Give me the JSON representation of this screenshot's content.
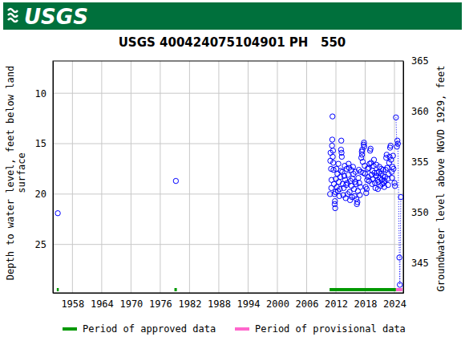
{
  "header": {
    "logo": "USGS"
  },
  "chart_data": {
    "type": "scatter",
    "title": "USGS 400424075104901 PH   550",
    "ylabel": [
      "Depth to water level, feet below land",
      "surface"
    ],
    "y2label": "Groundwater level above NGVD 1929, feet",
    "xlim": [
      1954,
      2025.8
    ],
    "xticks": [
      1958,
      1964,
      1970,
      1976,
      1982,
      1988,
      1994,
      2000,
      2006,
      2012,
      2018,
      2024
    ],
    "ylim": [
      6.8,
      29.8
    ],
    "yticks": [
      10,
      15,
      20,
      25
    ],
    "y2lim": [
      342,
      365
    ],
    "y2ticks": [
      345,
      350,
      355,
      360,
      365
    ],
    "grid": true,
    "series": [
      {
        "color": "#0000ff",
        "marker": "open-circle",
        "line_style": "none",
        "x": [
          1955.0,
          1979.2,
          2010.8,
          2010.85,
          2010.9,
          2011.0,
          2011.05,
          2011.1,
          2011.2,
          2011.25,
          2011.3,
          2011.35,
          2011.4,
          2011.45,
          2011.5,
          2011.6,
          2011.7,
          2011.75,
          2011.8,
          2011.85,
          2011.9,
          2012.0,
          2012.1,
          2012.2,
          2012.3,
          2012.4,
          2012.5,
          2012.6,
          2012.7,
          2012.8,
          2012.9,
          2013.0,
          2013.05,
          2013.1,
          2013.15,
          2013.2,
          2013.3,
          2013.4,
          2013.5,
          2013.6,
          2013.7,
          2013.8,
          2013.9,
          2014.0,
          2014.1,
          2014.2,
          2014.3,
          2014.4,
          2014.5,
          2014.6,
          2014.7,
          2014.8,
          2014.9,
          2015.0,
          2015.1,
          2015.2,
          2015.3,
          2015.4,
          2015.5,
          2015.6,
          2015.7,
          2015.8,
          2015.9,
          2016.0,
          2016.1,
          2016.2,
          2016.3,
          2016.4,
          2016.5,
          2016.6,
          2016.7,
          2016.8,
          2016.9,
          2017.0,
          2017.1,
          2017.2,
          2017.3,
          2017.35,
          2017.4,
          2017.5,
          2017.6,
          2017.7,
          2017.75,
          2017.8,
          2017.9,
          2018.0,
          2018.1,
          2018.2,
          2018.3,
          2018.4,
          2018.5,
          2018.6,
          2018.7,
          2018.8,
          2018.9,
          2019.0,
          2019.1,
          2019.2,
          2019.3,
          2019.4,
          2019.5,
          2019.6,
          2019.7,
          2019.8,
          2019.9,
          2020.0,
          2020.1,
          2020.2,
          2020.3,
          2020.4,
          2020.5,
          2020.6,
          2020.7,
          2020.8,
          2020.9,
          2021.0,
          2021.1,
          2021.2,
          2021.3,
          2021.4,
          2021.5,
          2021.6,
          2021.7,
          2021.8,
          2021.9,
          2022.0,
          2022.1,
          2022.2,
          2022.3,
          2022.4,
          2022.5,
          2022.6,
          2022.7,
          2022.8,
          2022.9,
          2023.0,
          2023.1,
          2023.2,
          2023.3,
          2023.4,
          2023.5,
          2023.6,
          2023.7,
          2023.8,
          2024.0,
          2024.1
        ],
        "values": [
          21.9,
          18.7,
          20.0,
          16.7,
          15.9,
          17.5,
          19.4,
          18.6,
          15.2,
          14.6,
          12.3,
          16.3,
          15.7,
          16.9,
          17.6,
          19.0,
          20.0,
          21.0,
          20.7,
          21.4,
          19.8,
          18.5,
          17.5,
          19.3,
          18.0,
          19.7,
          17.0,
          18.8,
          20.2,
          19.5,
          18.3,
          17.7,
          15.6,
          14.7,
          15.9,
          16.3,
          17.8,
          19.0,
          20.1,
          19.4,
          18.2,
          17.2,
          18.6,
          20.4,
          19.1,
          17.5,
          18.9,
          20.0,
          18.1,
          17.0,
          17.4,
          19.8,
          20.6,
          18.7,
          17.6,
          19.2,
          20.3,
          18.5,
          17.3,
          18.0,
          19.5,
          20.2,
          18.8,
          17.8,
          19.0,
          20.5,
          21.0,
          20.8,
          19.7,
          18.4,
          17.6,
          18.9,
          20.1,
          19.3,
          17.8,
          16.4,
          15.8,
          16.1,
          15.6,
          16.8,
          17.9,
          15.1,
          14.9,
          15.3,
          17.2,
          18.0,
          19.3,
          19.9,
          19.5,
          18.6,
          17.5,
          18.3,
          17.4,
          18.7,
          17.0,
          15.7,
          15.5,
          16.9,
          18.1,
          19.0,
          17.7,
          18.5,
          17.2,
          16.6,
          17.9,
          18.9,
          19.4,
          18.2,
          17.1,
          17.9,
          18.6,
          19.5,
          18.8,
          17.8,
          17.3,
          18.4,
          19.2,
          18.0,
          17.5,
          18.6,
          19.0,
          18.2,
          17.6,
          18.9,
          19.3,
          18.7,
          18.3,
          17.6,
          16.4,
          16.1,
          17.4,
          18.5,
          19.1,
          18.0,
          16.9,
          16.3,
          15.4,
          15.2,
          16.6,
          17.8,
          18.4,
          17.3,
          16.2,
          17.5,
          18.9,
          19.2
        ]
      },
      {
        "color": "#0000ff",
        "marker": "open-circle",
        "line_style": "dotted",
        "x": [
          2024.3,
          2024.5,
          2024.6,
          2024.7,
          2025.0,
          2025.1,
          2025.3
        ],
        "values": [
          12.4,
          15.3,
          14.7,
          15.0,
          26.3,
          29.0,
          20.3
        ]
      }
    ],
    "periods": [
      {
        "name": "Period of approved data",
        "color": "#009900",
        "ranges": [
          [
            1954.8,
            1955.2
          ],
          [
            1978.9,
            1979.4
          ],
          [
            2010.7,
            2024.3
          ]
        ]
      },
      {
        "name": "Period of provisional data",
        "color": "#ff66cc",
        "ranges": [
          [
            2024.3,
            2025.6
          ]
        ]
      }
    ]
  }
}
